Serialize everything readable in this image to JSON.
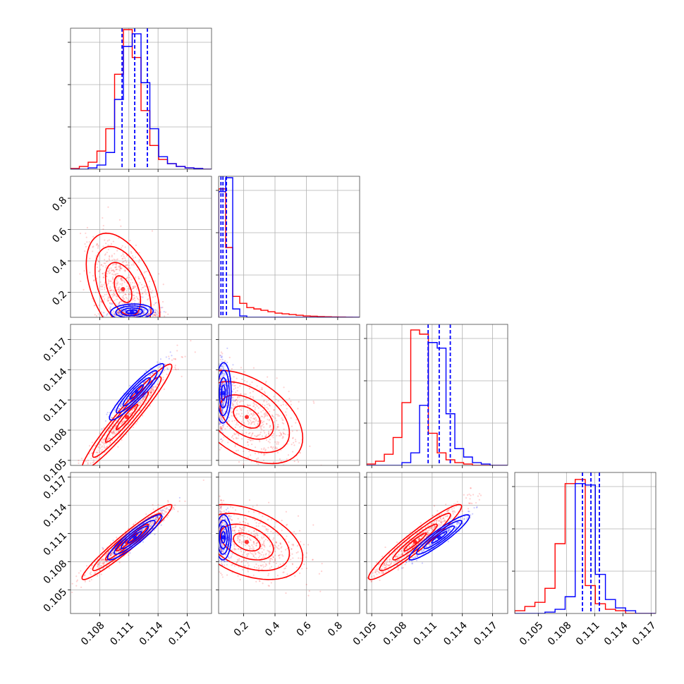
{
  "chart_data": {
    "type": "corner",
    "grid": true,
    "series": [
      {
        "name": "",
        "color": "#0000ff"
      },
      {
        "name": "",
        "color": "#ff0000"
      }
    ],
    "parameters": [
      {
        "range": [
          0.105,
          0.1195
        ],
        "ticks": [
          0.108,
          0.111,
          0.114,
          0.117
        ],
        "tick_labels": [
          "0.108",
          "0.111",
          "0.114",
          "0.117"
        ]
      },
      {
        "range": [
          0.04,
          0.94
        ],
        "ticks": [
          0.2,
          0.4,
          0.6,
          0.8
        ],
        "tick_labels": [
          "0.2",
          "0.4",
          "0.6",
          "0.8"
        ]
      },
      {
        "range": [
          0.1045,
          0.1185
        ],
        "ticks": [
          0.105,
          0.108,
          0.111,
          0.114,
          0.117
        ],
        "tick_labels": [
          "0.105",
          "0.108",
          "0.111",
          "0.114",
          "0.117"
        ]
      },
      {
        "range": [
          0.1025,
          0.1175
        ],
        "ticks": [
          0.105,
          0.108,
          0.111,
          0.114,
          0.117
        ],
        "tick_labels": [
          "0.105",
          "0.108",
          "0.111",
          "0.114",
          "0.117"
        ]
      }
    ],
    "quantiles_blue": [
      [
        0.1103,
        0.1116,
        0.1129
      ],
      [
        0.055,
        0.068,
        0.09
      ],
      [
        0.1106,
        0.1117,
        0.1128
      ],
      [
        0.1097,
        0.1106,
        0.1115
      ]
    ],
    "histograms": [
      {
        "blue": [
          0,
          0,
          0.01,
          0.03,
          0.12,
          0.5,
          0.88,
          0.97,
          0.62,
          0.29,
          0.09,
          0.04,
          0.02,
          0.01,
          0.005,
          0
        ],
        "red": [
          0.005,
          0.02,
          0.05,
          0.13,
          0.29,
          0.68,
          1.0,
          0.8,
          0.42,
          0.17,
          0.07,
          0.04,
          0.02,
          0.01,
          0.005,
          0
        ]
      },
      {
        "blue": [
          0.9,
          1.0,
          0.06,
          0.01,
          0,
          0,
          0,
          0,
          0,
          0,
          0,
          0,
          0,
          0,
          0,
          0,
          0,
          0,
          0,
          0
        ],
        "red": [
          0.92,
          0.5,
          0.15,
          0.1,
          0.07,
          0.06,
          0.05,
          0.04,
          0.03,
          0.025,
          0.02,
          0.015,
          0.01,
          0.008,
          0.005,
          0.004,
          0.003,
          0.002,
          0.001,
          0
        ]
      },
      {
        "blue": [
          0,
          0,
          0,
          0,
          0.02,
          0.09,
          0.43,
          0.88,
          0.84,
          0.37,
          0.12,
          0.06,
          0.02,
          0.01,
          0,
          0
        ],
        "red": [
          0.01,
          0.03,
          0.08,
          0.2,
          0.45,
          0.97,
          0.94,
          0.23,
          0.09,
          0.04,
          0.02,
          0.01,
          0,
          0,
          0,
          0
        ]
      },
      {
        "blue": [
          0,
          0,
          0,
          0.01,
          0.03,
          0.12,
          0.93,
          0.92,
          0.28,
          0.1,
          0.04,
          0.02,
          0,
          0
        ],
        "red": [
          0.02,
          0.05,
          0.08,
          0.18,
          0.5,
          0.93,
          0.96,
          0.2,
          0.07,
          0.03,
          0.02,
          0,
          0,
          0
        ]
      }
    ],
    "pairs": [
      {
        "row": 1,
        "col": 0,
        "blue": {
          "mean": [
            0.1113,
            0.075
          ],
          "sd": [
            0.0011,
            0.025
          ],
          "corr": 0.1
        },
        "red": {
          "mean": [
            0.1104,
            0.22
          ],
          "sd": [
            0.0018,
            0.17
          ],
          "corr": -0.45
        }
      },
      {
        "row": 2,
        "col": 0,
        "blue": {
          "mean": [
            0.1118,
            0.1118
          ],
          "sd": [
            0.0014,
            0.0014
          ],
          "corr": 0.93
        },
        "red": {
          "mean": [
            0.1108,
            0.1093
          ],
          "sd": [
            0.0022,
            0.0025
          ],
          "corr": 0.96
        }
      },
      {
        "row": 2,
        "col": 1,
        "blue": {
          "mean": [
            0.07,
            0.1117
          ],
          "sd": [
            0.025,
            0.0015
          ],
          "corr": 0.05
        },
        "red": {
          "mean": [
            0.22,
            0.1093
          ],
          "sd": [
            0.17,
            0.0022
          ],
          "corr": -0.45
        }
      },
      {
        "row": 3,
        "col": 0,
        "blue": {
          "mean": [
            0.1116,
            0.1106
          ],
          "sd": [
            0.0014,
            0.0012
          ],
          "corr": 0.92
        },
        "red": {
          "mean": [
            0.1108,
            0.1101
          ],
          "sd": [
            0.0022,
            0.0019
          ],
          "corr": 0.96
        }
      },
      {
        "row": 3,
        "col": 1,
        "blue": {
          "mean": [
            0.07,
            0.1106
          ],
          "sd": [
            0.025,
            0.0012
          ],
          "corr": 0.05
        },
        "red": {
          "mean": [
            0.22,
            0.1101
          ],
          "sd": [
            0.17,
            0.0019
          ],
          "corr": -0.4
        }
      },
      {
        "row": 3,
        "col": 2,
        "blue": {
          "mean": [
            0.1117,
            0.1106
          ],
          "sd": [
            0.0015,
            0.0012
          ],
          "corr": 0.93
        },
        "red": {
          "mean": [
            0.1093,
            0.1101
          ],
          "sd": [
            0.0022,
            0.0019
          ],
          "corr": 0.95
        }
      }
    ]
  }
}
